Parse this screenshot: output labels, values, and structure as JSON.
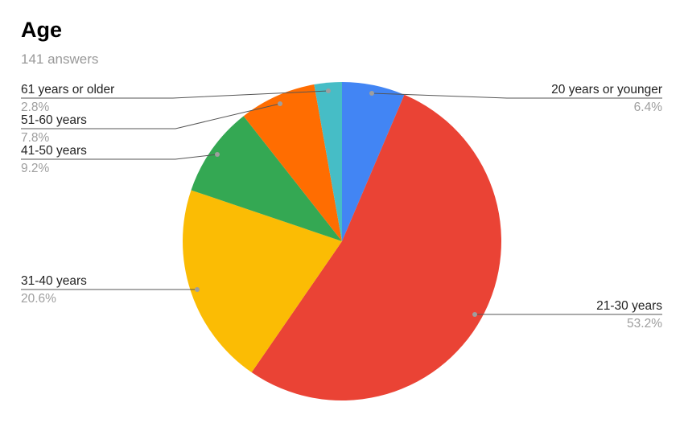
{
  "header": {
    "title": "Age",
    "subtitle": "141 answers"
  },
  "chart_data": {
    "type": "pie",
    "title": "Age",
    "start": "top",
    "direction": "clockwise",
    "legend": "leader-line labels",
    "slices": [
      {
        "label": "20 years or younger",
        "value": 6.4,
        "pct_text": "6.4%",
        "color": "#4285f4"
      },
      {
        "label": "21-30 years",
        "value": 53.2,
        "pct_text": "53.2%",
        "color": "#ea4335"
      },
      {
        "label": "31-40 years",
        "value": 20.6,
        "pct_text": "20.6%",
        "color": "#fbbc04"
      },
      {
        "label": "41-50 years",
        "value": 9.2,
        "pct_text": "9.2%",
        "color": "#34a853"
      },
      {
        "label": "51-60 years",
        "value": 7.8,
        "pct_text": "7.8%",
        "color": "#ff6d01"
      },
      {
        "label": "61 years or older",
        "value": 2.8,
        "pct_text": "2.8%",
        "color": "#46bdc6"
      }
    ]
  }
}
